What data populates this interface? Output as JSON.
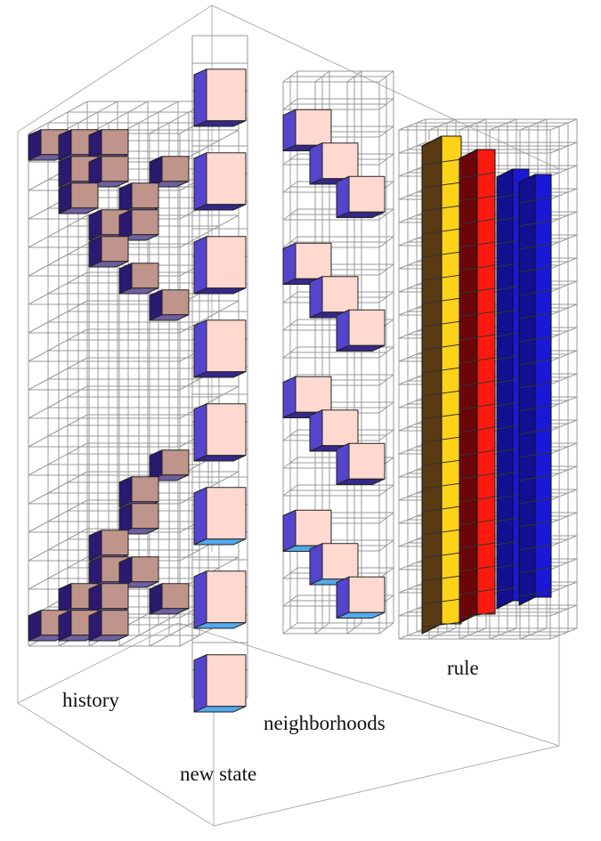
{
  "labels": {
    "history": "history",
    "new_state": "new state",
    "neighborhoods": "neighborhoods",
    "rule": "rule"
  },
  "colors": {
    "cube_front": "#ffd9d0",
    "cube_side": "#5544cc",
    "cube_top": "#352888",
    "cube_top_light": "#55aaee",
    "history_front": "#bf948b",
    "history_side": "#2b1a70",
    "history_top": "#6f5fa0",
    "rule_brown": "#5a3a12",
    "rule_yellow": "#ffd21a",
    "rule_darkred": "#6a0608",
    "rule_red": "#ff1a10",
    "rule_blue": "#1a18d8",
    "rule_navy": "#121090",
    "grid_line": "#999999"
  }
}
